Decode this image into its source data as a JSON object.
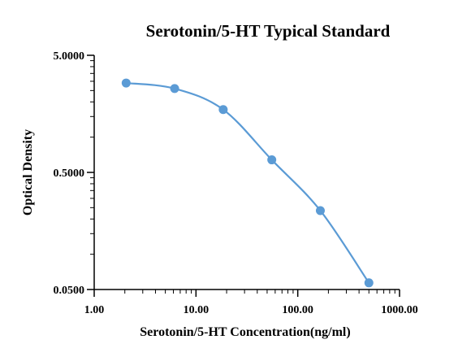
{
  "chart_data": {
    "type": "line",
    "title": "Serotonin/5-HT  Typical Standard",
    "xlabel": "Serotonin/5-HT Concentration(ng/ml)",
    "ylabel": "Optical Density",
    "x_scale": "log",
    "y_scale": "log",
    "xlim": [
      1,
      1000
    ],
    "ylim": [
      0.05,
      5
    ],
    "x_ticks": [
      1,
      10,
      100,
      1000
    ],
    "x_tick_labels": [
      "1.00",
      "10.00",
      "100.00",
      "1000.00"
    ],
    "y_ticks": [
      0.05,
      0.5,
      5
    ],
    "y_tick_labels": [
      "0.0500",
      "0.5000",
      "5.0000"
    ],
    "grid": false,
    "series": [
      {
        "x": [
          2.06,
          6.17,
          18.52,
          55.56,
          166.67,
          500
        ],
        "y": [
          2.9,
          2.6,
          1.72,
          0.64,
          0.236,
          0.057
        ],
        "color": "#5b9bd5",
        "markers": true
      }
    ]
  }
}
